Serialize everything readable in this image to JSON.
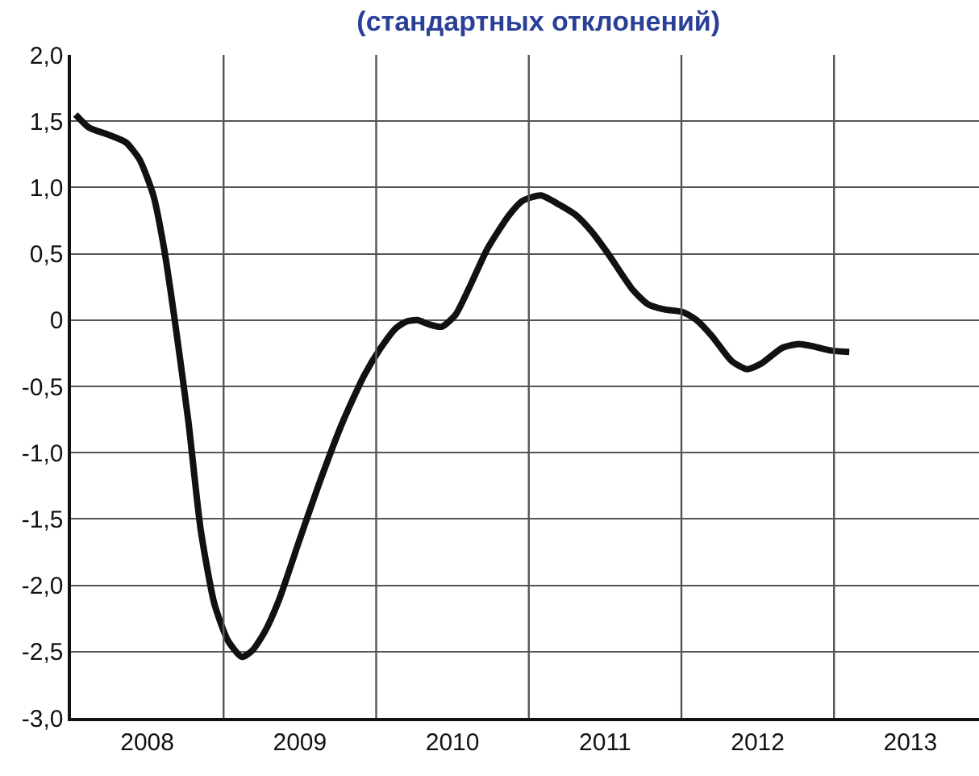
{
  "chart_data": {
    "type": "line",
    "title": "(стандартных отклонений)",
    "x": [
      2008.03,
      2008.12,
      2008.24,
      2008.36,
      2008.45,
      2008.54,
      2008.61,
      2008.68,
      2008.77,
      2008.85,
      2008.94,
      2009.03,
      2009.12,
      2009.19,
      2009.27,
      2009.36,
      2009.5,
      2009.64,
      2009.78,
      2009.92,
      2010.03,
      2010.13,
      2010.2,
      2010.27,
      2010.34,
      2010.43,
      2010.52,
      2010.62,
      2010.73,
      2010.87,
      2010.96,
      2011.08,
      2011.2,
      2011.31,
      2011.41,
      2011.52,
      2011.68,
      2011.78,
      2011.89,
      2012.01,
      2012.1,
      2012.2,
      2012.33,
      2012.43,
      2012.52,
      2012.66,
      2012.77,
      2012.87,
      2012.98,
      2013.1
    ],
    "series": [
      {
        "color": "#111111",
        "values": [
          1.55,
          1.45,
          1.4,
          1.34,
          1.21,
          0.94,
          0.54,
          0,
          -0.77,
          -1.58,
          -2.14,
          -2.42,
          -2.54,
          -2.49,
          -2.35,
          -2.12,
          -1.65,
          -1.19,
          -0.77,
          -0.42,
          -0.21,
          -0.06,
          -0.01,
          0,
          -0.03,
          -0.05,
          0.04,
          0.27,
          0.54,
          0.79,
          0.9,
          0.94,
          0.87,
          0.79,
          0.67,
          0.5,
          0.23,
          0.12,
          0.08,
          0.06,
          0,
          -0.12,
          -0.31,
          -0.37,
          -0.33,
          -0.21,
          -0.18,
          -0.2,
          -0.23,
          -0.24
        ]
      }
    ],
    "xlim": [
      2008,
      2013.95
    ],
    "xticks": [
      {
        "value": 2008.5,
        "label": "2008"
      },
      {
        "value": 2009,
        "label": null
      },
      {
        "value": 2009.5,
        "label": "2009"
      },
      {
        "value": 2010,
        "label": null
      },
      {
        "value": 2010.5,
        "label": "2010"
      },
      {
        "value": 2011,
        "label": null
      },
      {
        "value": 2011.5,
        "label": "2011"
      },
      {
        "value": 2012,
        "label": null
      },
      {
        "value": 2012.5,
        "label": "2012"
      },
      {
        "value": 2013,
        "label": null
      },
      {
        "value": 2013.5,
        "label": "2013"
      }
    ],
    "ylim": [
      -3,
      2
    ],
    "yticks": [
      {
        "value": -3,
        "label": "-3,0"
      },
      {
        "value": -2.5,
        "label": "-2,5"
      },
      {
        "value": -2,
        "label": "-2,0"
      },
      {
        "value": -1.5,
        "label": "-1,5"
      },
      {
        "value": -1,
        "label": "-1,0"
      },
      {
        "value": -0.5,
        "label": "-0,5"
      },
      0,
      {
        "value": 0.5,
        "label": "0,5"
      },
      {
        "value": 1,
        "label": "1,0"
      },
      {
        "value": 1.5,
        "label": "1,5"
      },
      {
        "value": 2,
        "label": "2,0"
      }
    ],
    "grid": true,
    "marker": "none",
    "line_style": "solid"
  }
}
